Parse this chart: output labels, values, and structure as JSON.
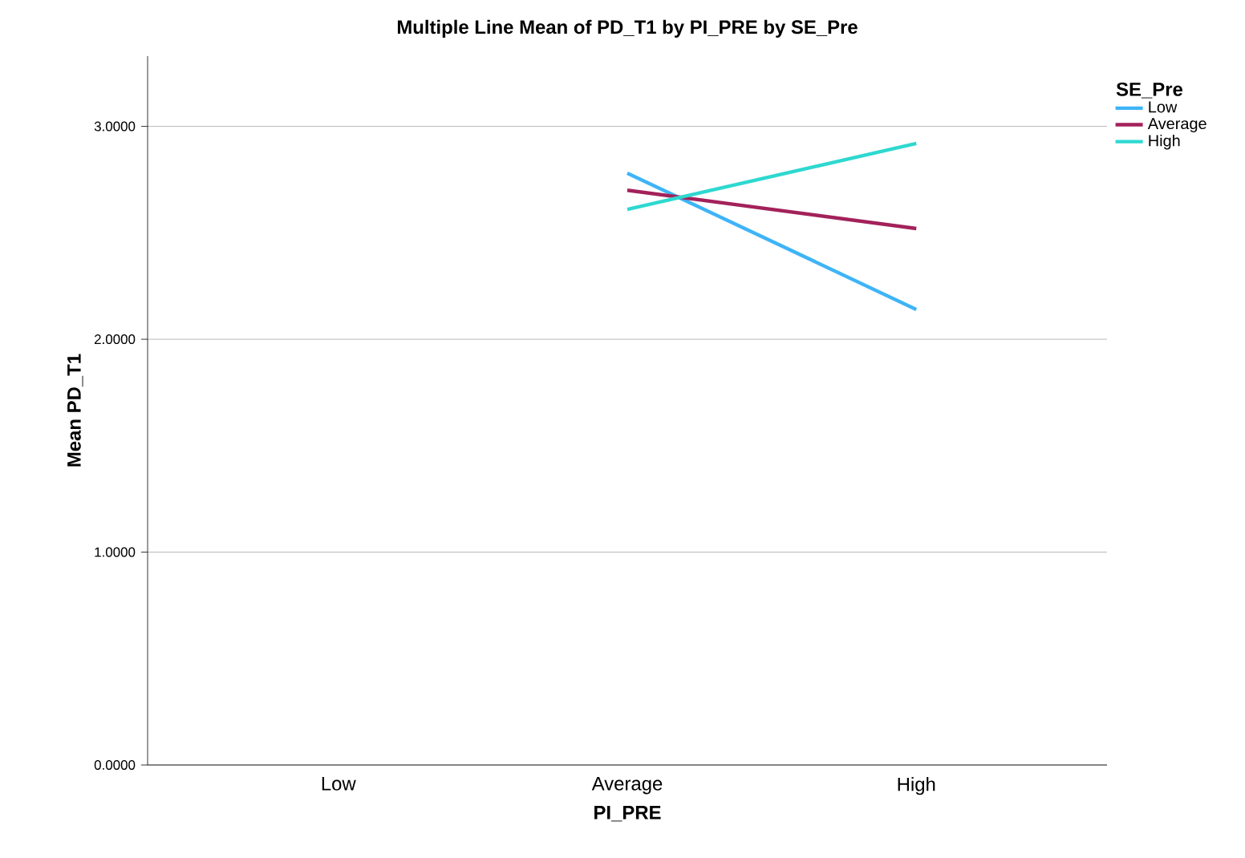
{
  "chart_data": {
    "type": "line",
    "title": "Multiple Line Mean of PD_T1 by PI_PRE by SE_Pre",
    "xlabel": "PI_PRE",
    "ylabel": "Mean PD_T1",
    "legend_title": "SE_Pre",
    "categories": [
      "Low",
      "Average",
      "High"
    ],
    "series": [
      {
        "name": "Low",
        "color": "#3eb4f7",
        "values": [
          null,
          2.78,
          2.14
        ]
      },
      {
        "name": "Average",
        "color": "#a3215a",
        "values": [
          null,
          2.7,
          2.52
        ]
      },
      {
        "name": "High",
        "color": "#2ed8d0",
        "values": [
          null,
          2.61,
          2.92
        ]
      }
    ],
    "ylim": [
      0,
      3.33
    ],
    "yticks": [
      {
        "value": 0,
        "label": "0.0000"
      },
      {
        "value": 1,
        "label": "1.0000"
      },
      {
        "value": 2,
        "label": "2.0000"
      },
      {
        "value": 3,
        "label": "3.0000"
      }
    ],
    "grid": "y",
    "legend": "right",
    "marker": "none",
    "line_style": "solid"
  }
}
